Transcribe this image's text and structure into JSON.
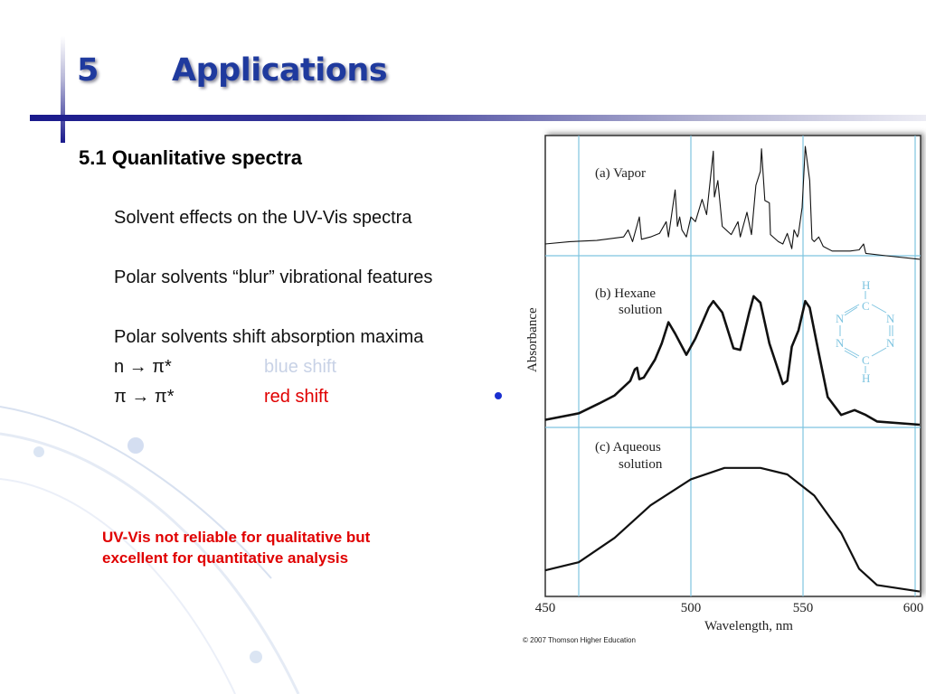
{
  "slide": {
    "title_number": "5",
    "title": "Applications",
    "subtitle": "5.1 Quanlitative spectra",
    "bullets": [
      "Solvent effects on the UV-Vis spectra",
      "Polar solvents “blur” vibrational features",
      "Polar solvents shift absorption maxima"
    ],
    "transitions": [
      {
        "label": "n → π*",
        "effect": "blue shift",
        "color": "#c8d2e6"
      },
      {
        "label": "π → π*",
        "effect": "red shift",
        "color": "#e00000"
      }
    ],
    "note": "UV-Vis not reliable for qualitative but excellent for quantitative analysis",
    "credit": "© 2007 Thomson Higher Education",
    "accent_color": "#1f3a9e"
  },
  "chart_data": {
    "type": "line",
    "xlabel": "Wavelength, nm",
    "ylabel": "Absorbance",
    "xlim": [
      435,
      602
    ],
    "xticks": [
      450,
      500,
      550,
      600
    ],
    "grid": true,
    "gridline_color": "#7ec4e0",
    "molecule_labels": [
      "H",
      "C",
      "N",
      "N",
      "N",
      "N",
      "C",
      "H"
    ],
    "panels": [
      {
        "name": "(a) Vapor",
        "points": [
          [
            435,
            0.1
          ],
          [
            446,
            0.12
          ],
          [
            458,
            0.13
          ],
          [
            470,
            0.16
          ],
          [
            472,
            0.22
          ],
          [
            474,
            0.12
          ],
          [
            477,
            0.33
          ],
          [
            478,
            0.14
          ],
          [
            482,
            0.16
          ],
          [
            486,
            0.19
          ],
          [
            489,
            0.29
          ],
          [
            490,
            0.16
          ],
          [
            493,
            0.56
          ],
          [
            494,
            0.25
          ],
          [
            495,
            0.33
          ],
          [
            496,
            0.22
          ],
          [
            498,
            0.16
          ],
          [
            500,
            0.33
          ],
          [
            502,
            0.29
          ],
          [
            505,
            0.48
          ],
          [
            507,
            0.35
          ],
          [
            510,
            0.89
          ],
          [
            510.5,
            0.5
          ],
          [
            512,
            0.64
          ],
          [
            514,
            0.25
          ],
          [
            518,
            0.18
          ],
          [
            521,
            0.29
          ],
          [
            522,
            0.16
          ],
          [
            525,
            0.37
          ],
          [
            527,
            0.18
          ],
          [
            529,
            0.6
          ],
          [
            531,
            0.72
          ],
          [
            531.5,
            0.91
          ],
          [
            533,
            0.47
          ],
          [
            535,
            0.45
          ],
          [
            535.5,
            0.18
          ],
          [
            539,
            0.12
          ],
          [
            541,
            0.1
          ],
          [
            543,
            0.19
          ],
          [
            545,
            0.06
          ],
          [
            546,
            0.22
          ],
          [
            547.5,
            0.16
          ],
          [
            548,
            0.19
          ],
          [
            549.6,
            0.41
          ],
          [
            551,
            0.93
          ],
          [
            553,
            0.64
          ],
          [
            554,
            0.14
          ],
          [
            555,
            0.12
          ],
          [
            557,
            0.16
          ],
          [
            559,
            0.08
          ],
          [
            563,
            0.04
          ],
          [
            571,
            0.04
          ],
          [
            575,
            0.05
          ],
          [
            577,
            0.1
          ],
          [
            578,
            0.02
          ],
          [
            587,
            0.0
          ],
          [
            602,
            -0.03
          ]
        ]
      },
      {
        "name": "(b) Hexane solution",
        "points": [
          [
            435,
            0.03
          ],
          [
            450,
            0.07
          ],
          [
            459,
            0.13
          ],
          [
            466,
            0.18
          ],
          [
            473,
            0.27
          ],
          [
            475,
            0.34
          ],
          [
            476,
            0.35
          ],
          [
            477,
            0.28
          ],
          [
            479,
            0.29
          ],
          [
            484,
            0.4
          ],
          [
            487,
            0.5
          ],
          [
            490,
            0.63
          ],
          [
            493,
            0.56
          ],
          [
            498,
            0.43
          ],
          [
            502,
            0.53
          ],
          [
            508,
            0.72
          ],
          [
            510,
            0.76
          ],
          [
            514,
            0.69
          ],
          [
            519,
            0.47
          ],
          [
            522,
            0.46
          ],
          [
            526,
            0.69
          ],
          [
            528,
            0.79
          ],
          [
            531,
            0.75
          ],
          [
            535,
            0.5
          ],
          [
            541,
            0.25
          ],
          [
            543,
            0.27
          ],
          [
            545,
            0.48
          ],
          [
            548,
            0.58
          ],
          [
            551,
            0.76
          ],
          [
            553,
            0.72
          ],
          [
            557,
            0.44
          ],
          [
            561,
            0.17
          ],
          [
            567,
            0.06
          ],
          [
            573,
            0.09
          ],
          [
            578,
            0.06
          ],
          [
            583,
            0.02
          ],
          [
            602,
            0.0
          ]
        ]
      },
      {
        "name": "(c) Aqueous solution",
        "points": [
          [
            435,
            0.16
          ],
          [
            450,
            0.21
          ],
          [
            466,
            0.36
          ],
          [
            482,
            0.56
          ],
          [
            500,
            0.72
          ],
          [
            515,
            0.79
          ],
          [
            531,
            0.79
          ],
          [
            543,
            0.75
          ],
          [
            555,
            0.62
          ],
          [
            567,
            0.39
          ],
          [
            575,
            0.17
          ],
          [
            583,
            0.07
          ],
          [
            602,
            0.03
          ]
        ]
      }
    ]
  }
}
